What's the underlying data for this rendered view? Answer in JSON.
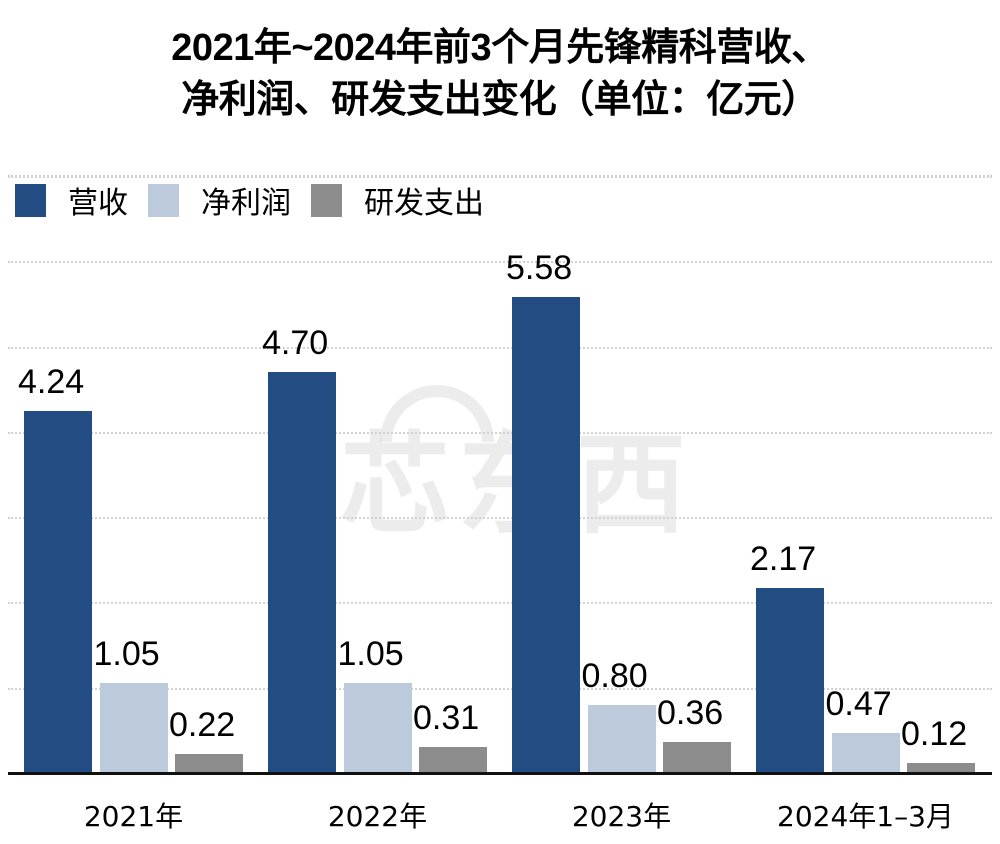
{
  "title_line1": "2021年~2024年前3个月先锋精科营收、",
  "title_line2": "净利润、研发支出变化（单位：亿元）",
  "legend": [
    {
      "label": "营收",
      "color": "#234d82"
    },
    {
      "label": "净利润",
      "color": "#bccadb"
    },
    {
      "label": "研发支出",
      "color": "#8c8c8c"
    }
  ],
  "watermark": "芯东西",
  "chart_data": {
    "type": "bar",
    "title": "2021年~2024年前3个月先锋精科营收、净利润、研发支出变化（单位：亿元）",
    "categories": [
      "2021年",
      "2022年",
      "2023年",
      "2024年1–3月"
    ],
    "series": [
      {
        "name": "营收",
        "color": "#234d82",
        "values": [
          4.24,
          4.7,
          5.58,
          2.17
        ],
        "labels": [
          "4.24",
          "4.70",
          "5.58",
          "2.17"
        ]
      },
      {
        "name": "净利润",
        "color": "#bccadb",
        "values": [
          1.05,
          1.05,
          0.8,
          0.47
        ],
        "labels": [
          "1.05",
          "1.05",
          "0.80",
          "0.47"
        ]
      },
      {
        "name": "研发支出",
        "color": "#8c8c8c",
        "values": [
          0.22,
          0.31,
          0.36,
          0.12
        ],
        "labels": [
          "0.22",
          "0.31",
          "0.36",
          "0.12"
        ]
      }
    ],
    "xlabel": "",
    "ylabel": "亿元",
    "ylim": [
      0,
      7
    ],
    "grid": true,
    "gridlines": [
      1,
      2,
      3,
      4,
      5,
      6,
      7
    ],
    "legend_position": "top-left",
    "y_axis_visible": false
  }
}
